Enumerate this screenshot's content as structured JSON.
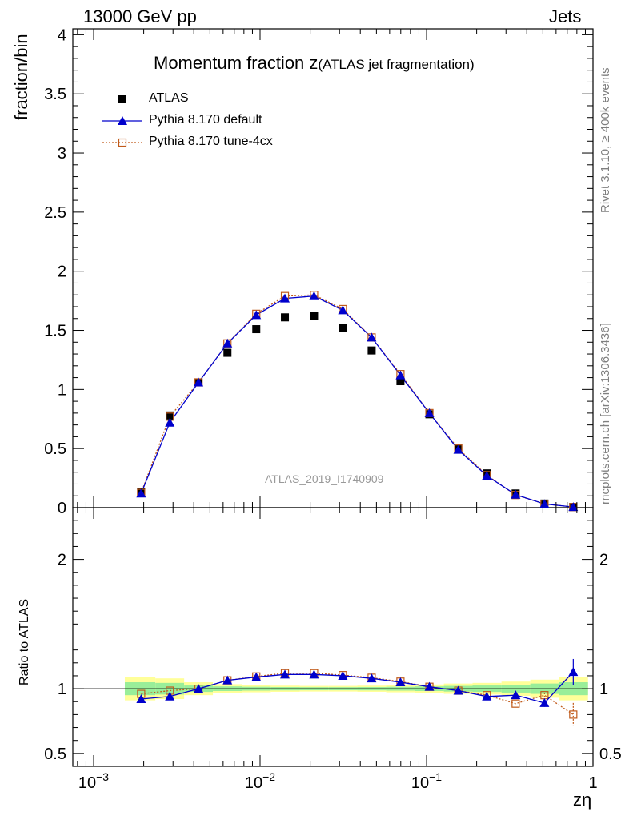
{
  "header": {
    "left": "13000 GeV pp",
    "right": "Jets"
  },
  "side_labels": {
    "top": "Rivet 3.1.10, ≥ 400k events",
    "bottom": "mcplots.cern.ch [arXiv:1306.3436]"
  },
  "colors": {
    "data": "#000000",
    "default": "#0000cc",
    "tune": "#c05a1a",
    "band_inner": "#99ee99",
    "band_outer": "#ffff99"
  },
  "chart_data": {
    "type": "scatter",
    "title": "Momentum fraction z",
    "title_suffix": "(ATLAS jet fragmentation)",
    "ylabel": "fraction/bin",
    "ratio_ylabel": "Ratio to ATLAS",
    "xlabel": "zη",
    "analysis_id": "ATLAS_2019_I1740909",
    "xscale": "log",
    "xlim": [
      0.00075,
      1.0
    ],
    "ylim": [
      0,
      4.05
    ],
    "ratio_ylim": [
      0.4,
      2.4
    ],
    "main_yticks": [
      {
        "v": 0,
        "label": "0"
      },
      {
        "v": 0.5,
        "label": "0.5"
      },
      {
        "v": 1,
        "label": "1"
      },
      {
        "v": 1.5,
        "label": "1.5"
      },
      {
        "v": 2,
        "label": "2"
      },
      {
        "v": 2.5,
        "label": "2.5"
      },
      {
        "v": 3,
        "label": "3"
      },
      {
        "v": 3.5,
        "label": "3.5"
      },
      {
        "v": 4,
        "label": "4"
      }
    ],
    "ratio_yticks": [
      {
        "v": 0.5,
        "label": "0.5"
      },
      {
        "v": 1,
        "label": "1"
      },
      {
        "v": 2,
        "label": "2"
      }
    ],
    "xticks": [
      {
        "v": 0.001,
        "base": "10",
        "exp": "−3"
      },
      {
        "v": 0.01,
        "base": "10",
        "exp": "−2"
      },
      {
        "v": 0.1,
        "base": "10",
        "exp": "−1"
      },
      {
        "v": 1,
        "base": "1",
        "exp": ""
      }
    ],
    "x": [
      0.00193,
      0.00287,
      0.00427,
      0.00637,
      0.00949,
      0.0141,
      0.0211,
      0.0314,
      0.0468,
      0.0697,
      0.104,
      0.155,
      0.23,
      0.343,
      0.511,
      0.761
    ],
    "series": [
      {
        "name": "ATLAS",
        "style": "data",
        "values": [
          0.13,
          0.78,
          1.06,
          1.31,
          1.51,
          1.61,
          1.62,
          1.52,
          1.33,
          1.07,
          0.79,
          0.5,
          0.29,
          0.12,
          0.035,
          0.006
        ]
      },
      {
        "name": "Pythia 8.170 default",
        "style": "default",
        "values": [
          0.12,
          0.72,
          1.06,
          1.39,
          1.63,
          1.77,
          1.79,
          1.67,
          1.44,
          1.12,
          0.8,
          0.49,
          0.27,
          0.11,
          0.031,
          0.006
        ]
      },
      {
        "name": "Pythia 8.170 tune-4cx",
        "style": "tune",
        "values": [
          0.125,
          0.77,
          1.06,
          1.39,
          1.64,
          1.79,
          1.8,
          1.68,
          1.44,
          1.13,
          0.8,
          0.5,
          0.275,
          0.107,
          0.033,
          0.005
        ]
      }
    ],
    "ratio_series": [
      {
        "name": "Pythia 8.170 default",
        "style": "default",
        "values": [
          0.92,
          0.94,
          1.0,
          1.065,
          1.09,
          1.11,
          1.11,
          1.1,
          1.08,
          1.05,
          1.015,
          0.985,
          0.94,
          0.95,
          0.89,
          1.13
        ],
        "errors": [
          0,
          0,
          0,
          0,
          0,
          0,
          0,
          0,
          0,
          0,
          0,
          0,
          0,
          0.015,
          0.03,
          0.1
        ]
      },
      {
        "name": "Pythia 8.170 tune-4cx",
        "style": "tune",
        "values": [
          0.96,
          0.985,
          1.0,
          1.065,
          1.095,
          1.12,
          1.12,
          1.105,
          1.085,
          1.055,
          1.015,
          0.985,
          0.95,
          0.885,
          0.95,
          0.8
        ],
        "errors": [
          0,
          0,
          0,
          0,
          0,
          0,
          0,
          0,
          0,
          0,
          0,
          0,
          0,
          0,
          0.02,
          0.09
        ]
      }
    ],
    "ratio_band": {
      "x_edges": [
        0.00154,
        0.00235,
        0.0035,
        0.00521,
        0.00777,
        0.0116,
        0.0173,
        0.0257,
        0.0384,
        0.0572,
        0.0852,
        0.127,
        0.189,
        0.282,
        0.42,
        0.626,
        0.933
      ],
      "inner": [
        0.05,
        0.045,
        0.025,
        0.018,
        0.015,
        0.013,
        0.012,
        0.012,
        0.013,
        0.015,
        0.018,
        0.022,
        0.025,
        0.03,
        0.04,
        0.05
      ],
      "outer": [
        0.09,
        0.08,
        0.05,
        0.035,
        0.028,
        0.024,
        0.022,
        0.022,
        0.024,
        0.028,
        0.033,
        0.04,
        0.045,
        0.055,
        0.07,
        0.09
      ]
    }
  }
}
